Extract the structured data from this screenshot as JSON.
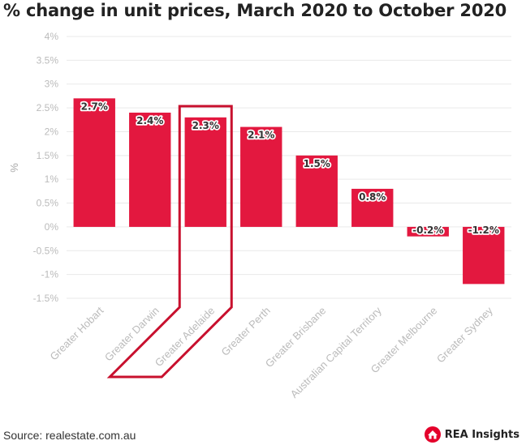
{
  "page": {
    "title": "% change in unit prices, March 2020 to October 2020",
    "source": "Source: realestate.com.au",
    "brand": "REA Insights"
  },
  "colors": {
    "bar": "#e3183f",
    "highlight": "#c8102e",
    "grid": "#e9e9e9",
    "axis_text": "#bbbbbb",
    "label_text": "#333333",
    "brand_red": "#e4002b"
  },
  "icons": {
    "logo": "house-logo-icon"
  },
  "chart_data": {
    "type": "bar",
    "title": "% change in unit prices, March 2020 to October 2020",
    "ylabel": "%",
    "xlabel": "",
    "ylim": [
      -1.5,
      4
    ],
    "yticks": [
      4,
      3.5,
      3,
      2.5,
      2,
      1.5,
      1,
      0.5,
      0,
      -0.5,
      -1,
      -1.5
    ],
    "ytick_labels": [
      "4%",
      "3.5%",
      "3%",
      "2.5%",
      "2%",
      "1.5%",
      "1%",
      "0.5%",
      "0%",
      "-0.5%",
      "-1%",
      "-1.5%"
    ],
    "categories": [
      "Greater Hobart",
      "Greater Darwin",
      "Greater Adelaide",
      "Greater Perth",
      "Greater Brisbane",
      "Australian Capital Territory",
      "Greater Melbourne",
      "Greater Sydney"
    ],
    "values": [
      2.7,
      2.4,
      2.3,
      2.1,
      1.5,
      0.8,
      -0.2,
      -1.2
    ],
    "data_labels": [
      "2.7%",
      "2.4%",
      "2.3%",
      "2.1%",
      "1.5%",
      "0.8%",
      "-0.2%",
      "-1.2%"
    ],
    "highlighted_category": "Greater Adelaide",
    "grid": true,
    "legend": "none"
  }
}
